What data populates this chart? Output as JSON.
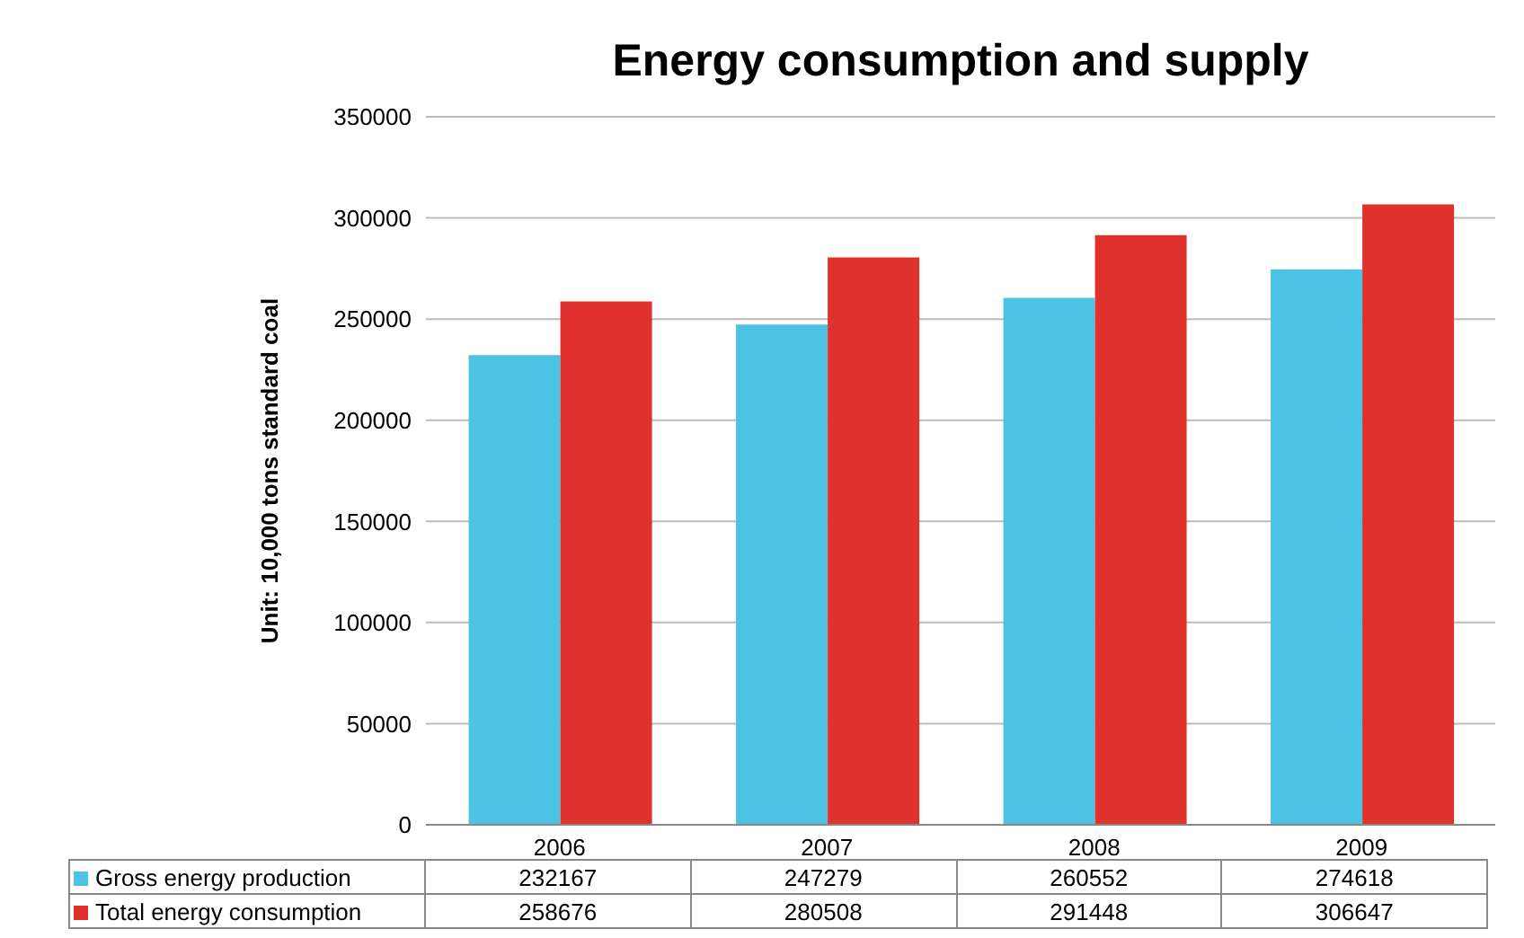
{
  "chart_data": {
    "type": "bar",
    "title": "Energy consumption and supply",
    "ylabel": "Unit: 10,000 tons standard coal",
    "categories": [
      "2006",
      "2007",
      "2008",
      "2009"
    ],
    "series": [
      {
        "name": "Gross energy production",
        "color": "#4dc3e3",
        "values": [
          232167,
          247279,
          260552,
          274618
        ]
      },
      {
        "name": "Total energy consumption",
        "color": "#e0322d",
        "values": [
          258676,
          280508,
          291448,
          306647
        ]
      }
    ],
    "ylim": [
      0,
      350000
    ],
    "yticks": [
      0,
      50000,
      100000,
      150000,
      200000,
      250000,
      300000,
      350000
    ],
    "grid": "y",
    "legend": "bottom",
    "data_labels": true
  }
}
